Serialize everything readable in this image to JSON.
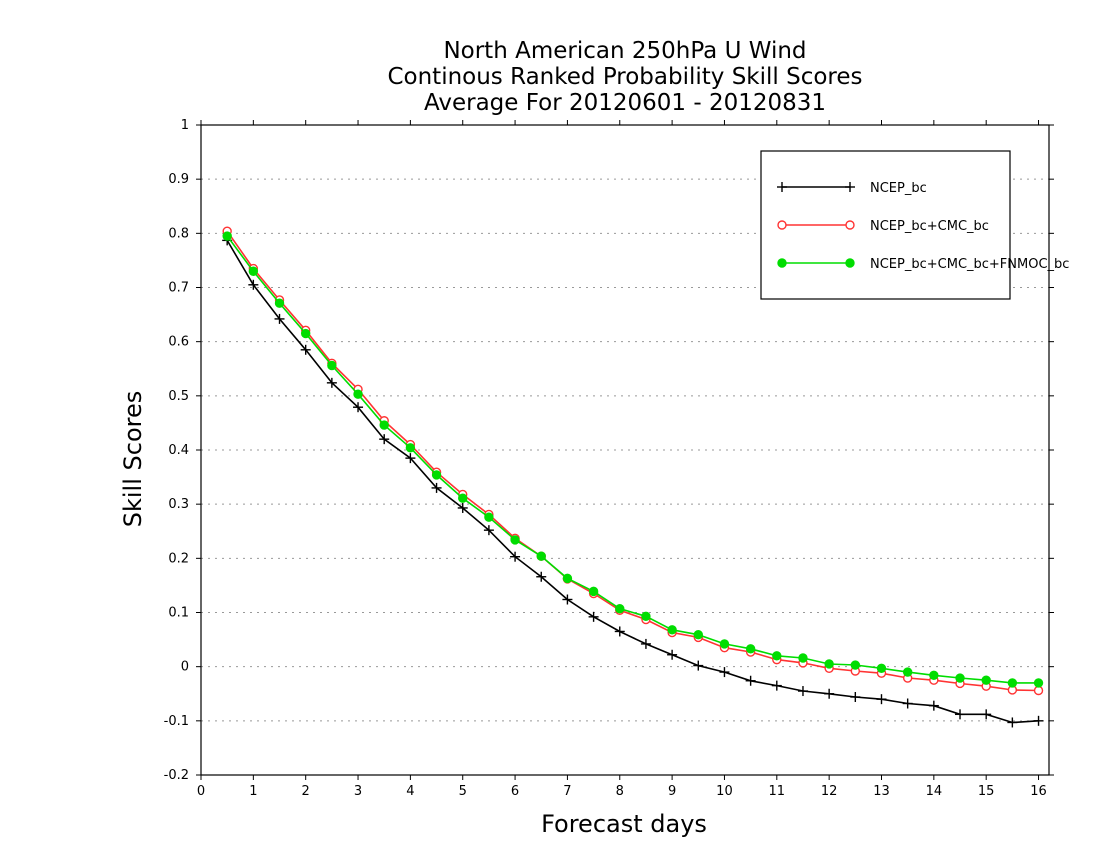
{
  "chart_data": {
    "type": "line",
    "title": [
      "North American 250hPa U Wind",
      "Continous Ranked Probability Skill Scores",
      "Average For 20120601 - 20120831"
    ],
    "xlabel": "Forecast days",
    "ylabel": "Skill Scores",
    "xlim": [
      0,
      16.2
    ],
    "ylim": [
      -0.2,
      1
    ],
    "xticks": [
      0,
      1,
      2,
      3,
      4,
      5,
      6,
      7,
      8,
      9,
      10,
      11,
      12,
      13,
      14,
      15,
      16
    ],
    "yticks": [
      -0.2,
      -0.1,
      0,
      0.1,
      0.2,
      0.3,
      0.4,
      0.5,
      0.6,
      0.7,
      0.8,
      0.9,
      1
    ],
    "ytick_labels": [
      "-0.2",
      "-0.1",
      "0",
      "0.1",
      "0.2",
      "0.3",
      "0.4",
      "0.5",
      "0.6",
      "0.7",
      "0.8",
      "0.9",
      "1"
    ],
    "grid": "horizontal dotted",
    "legend_position": "top-right",
    "x": [
      0.5,
      1,
      1.5,
      2,
      2.5,
      3,
      3.5,
      4,
      4.5,
      5,
      5.5,
      6,
      6.5,
      7,
      7.5,
      8,
      8.5,
      9,
      9.5,
      10,
      10.5,
      11,
      11.5,
      12,
      12.5,
      13,
      13.5,
      14,
      14.5,
      15,
      15.5,
      16
    ],
    "series": [
      {
        "name": "NCEP_bc",
        "color": "#000000",
        "marker": "plus",
        "values": [
          0.787,
          0.705,
          0.642,
          0.585,
          0.524,
          0.479,
          0.42,
          0.385,
          0.33,
          0.293,
          0.252,
          0.203,
          0.166,
          0.124,
          0.092,
          0.065,
          0.042,
          0.022,
          0.002,
          -0.01,
          -0.026,
          -0.035,
          -0.045,
          -0.05,
          -0.056,
          -0.06,
          -0.068,
          -0.072,
          -0.088,
          -0.088,
          -0.103,
          -0.1
        ]
      },
      {
        "name": "NCEP_bc+CMC_bc",
        "color": "#ff3333",
        "marker": "open-circle",
        "values": [
          0.804,
          0.735,
          0.677,
          0.621,
          0.56,
          0.512,
          0.454,
          0.41,
          0.359,
          0.318,
          0.281,
          0.237,
          0.204,
          0.162,
          0.135,
          0.104,
          0.087,
          0.063,
          0.054,
          0.035,
          0.027,
          0.013,
          0.007,
          -0.003,
          -0.008,
          -0.012,
          -0.021,
          -0.025,
          -0.031,
          -0.036,
          -0.043,
          -0.044
        ]
      },
      {
        "name": "NCEP_bc+CMC_bc+FNMOC_bc",
        "color": "#00dd00",
        "marker": "filled-circle",
        "values": [
          0.795,
          0.73,
          0.671,
          0.615,
          0.556,
          0.503,
          0.446,
          0.404,
          0.354,
          0.311,
          0.276,
          0.234,
          0.204,
          0.163,
          0.139,
          0.107,
          0.093,
          0.068,
          0.059,
          0.042,
          0.033,
          0.02,
          0.016,
          0.005,
          0.003,
          -0.003,
          -0.01,
          -0.016,
          -0.021,
          -0.025,
          -0.03,
          -0.03
        ]
      }
    ]
  }
}
